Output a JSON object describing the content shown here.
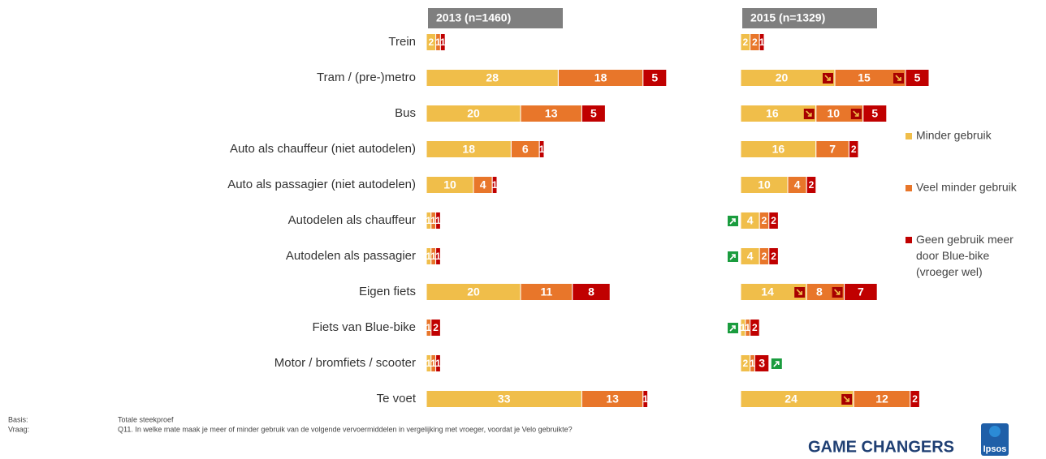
{
  "chart_data": {
    "type": "bar",
    "categories": [
      "Trein",
      "Tram / (pre-)metro",
      "Bus",
      "Auto als chauffeur (niet autodelen)",
      "Auto als passagier (niet autodelen)",
      "Autodelen als chauffeur",
      "Autodelen als passagier",
      "Eigen fiets",
      "Fiets van Blue-bike",
      "Motor / bromfiets / scooter",
      "Te voet"
    ],
    "panels": [
      {
        "title": "2013 (n=1460)",
        "series": [
          {
            "name": "Minder gebruik",
            "color": "#f0be4a",
            "values": [
              2,
              28,
              20,
              18,
              10,
              1,
              1,
              20,
              null,
              1,
              33
            ]
          },
          {
            "name": "Veel minder gebruik",
            "color": "#e8762a",
            "values": [
              1,
              18,
              13,
              6,
              4,
              1,
              1,
              11,
              1,
              1,
              13
            ]
          },
          {
            "name": "Geen gebruik meer door Blue-bike (vroeger wel)",
            "color": "#c00000",
            "values": [
              1,
              5,
              5,
              1,
              1,
              1,
              1,
              8,
              2,
              1,
              1
            ]
          }
        ]
      },
      {
        "title": "2015 (n=1329)",
        "series": [
          {
            "color": "#f0be4a",
            "values": [
              2,
              20,
              16,
              16,
              10,
              4,
              4,
              14,
              1,
              2,
              24
            ],
            "changes": [
              null,
              "down",
              "down",
              null,
              null,
              "up",
              "up",
              "down",
              "up",
              null,
              "down"
            ]
          },
          {
            "color": "#e8762a",
            "values": [
              2,
              15,
              10,
              7,
              4,
              2,
              2,
              8,
              1,
              1,
              12
            ],
            "changes": [
              null,
              "down",
              "down",
              null,
              null,
              null,
              null,
              "down",
              null,
              null,
              null
            ]
          },
          {
            "color": "#c00000",
            "values": [
              1,
              5,
              5,
              2,
              2,
              2,
              2,
              7,
              2,
              3,
              2
            ],
            "changes": [
              null,
              null,
              null,
              null,
              null,
              null,
              null,
              null,
              null,
              "up",
              null
            ]
          }
        ]
      }
    ],
    "footer": {
      "basis_label": "Basis:",
      "basis": "Totale steekproef",
      "question_label": "Vraag:",
      "question": "Q11. In welke mate maak je meer of minder gebruik van de volgende vervoermiddelen in vergelijking met vroeger, voordat je Velo gebruikte?"
    },
    "brand": "GAME CHANGERS",
    "logo": "Ipsos"
  }
}
